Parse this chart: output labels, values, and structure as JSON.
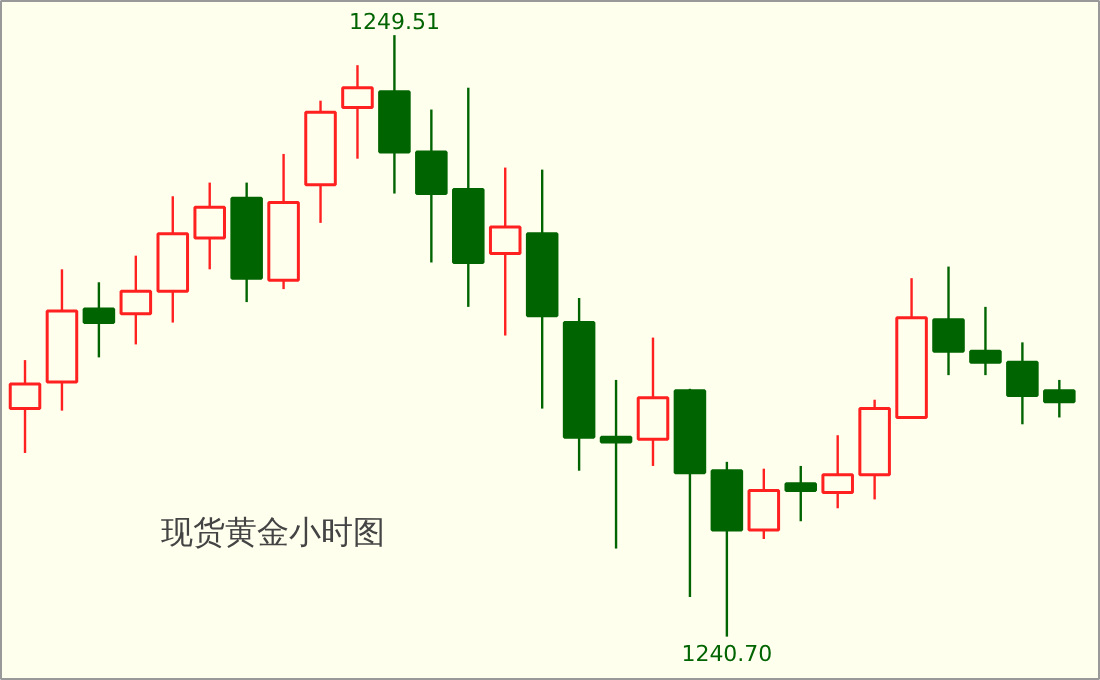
{
  "chart_data": {
    "type": "candlestick",
    "title": "现货黄金小时图",
    "categories": [
      null,
      null,
      null,
      null,
      null,
      null,
      null,
      null,
      null,
      null,
      null,
      null,
      null,
      null,
      null,
      null,
      null,
      null,
      null,
      null,
      null,
      null,
      null,
      null,
      null,
      null,
      null,
      null,
      null
    ],
    "ohlc": [
      [
        1244.04,
        1244.75,
        1243.39,
        1244.4
      ],
      [
        1244.43,
        1246.08,
        1244.01,
        1245.47
      ],
      [
        1245.5,
        1245.89,
        1244.79,
        1245.3
      ],
      [
        1245.43,
        1246.28,
        1244.98,
        1245.76
      ],
      [
        1245.76,
        1247.15,
        1245.3,
        1246.6
      ],
      [
        1246.54,
        1247.35,
        1246.08,
        1246.99
      ],
      [
        1247.12,
        1247.35,
        1245.6,
        1245.95
      ],
      [
        1245.92,
        1247.77,
        1245.79,
        1247.06
      ],
      [
        1247.32,
        1248.55,
        1246.76,
        1248.38
      ],
      [
        1248.45,
        1249.07,
        1247.7,
        1248.74
      ],
      [
        1248.68,
        1249.51,
        1247.19,
        1247.8
      ],
      [
        1247.8,
        1248.42,
        1246.18,
        1247.19
      ],
      [
        1247.25,
        1248.74,
        1245.53,
        1246.18
      ],
      [
        1246.31,
        1247.57,
        1245.11,
        1246.7
      ],
      [
        1246.6,
        1247.54,
        1244.04,
        1245.4
      ],
      [
        1245.3,
        1245.66,
        1243.13,
        1243.62
      ],
      [
        1243.62,
        1244.46,
        1241.99,
        1243.55
      ],
      [
        1243.59,
        1245.08,
        1243.2,
        1244.2
      ],
      [
        1244.3,
        1244.33,
        1241.28,
        1243.1
      ],
      [
        1243.13,
        1243.26,
        1240.7,
        1242.26
      ],
      [
        1242.26,
        1243.16,
        1242.13,
        1242.84
      ],
      [
        1242.94,
        1243.2,
        1242.39,
        1242.84
      ],
      [
        1242.81,
        1243.65,
        1242.58,
        1243.07
      ],
      [
        1243.07,
        1244.17,
        1242.71,
        1244.04
      ],
      [
        1243.91,
        1245.95,
        1243.91,
        1245.37
      ],
      [
        1245.34,
        1246.12,
        1244.53,
        1244.88
      ],
      [
        1244.88,
        1245.53,
        1244.53,
        1244.72
      ],
      [
        1244.72,
        1245.01,
        1243.81,
        1244.23
      ],
      [
        1244.3,
        1244.46,
        1243.91,
        1244.14
      ]
    ],
    "colors": [
      "#ff2020",
      "#ff2020",
      "#006400",
      "#ff2020",
      "#ff2020",
      "#ff2020",
      "#006400",
      "#ff2020",
      "#ff2020",
      "#ff2020",
      "#006400",
      "#006400",
      "#006400",
      "#ff2020",
      "#006400",
      "#006400",
      "#006400",
      "#ff2020",
      "#006400",
      "#006400",
      "#ff2020",
      "#006400",
      "#ff2020",
      "#ff2020",
      "#ff2020",
      "#006400",
      "#006400",
      "#006400",
      "#006400"
    ],
    "ylim": [
      1240.05,
      1250.01
    ],
    "annotations": [
      {
        "text": "1249.51",
        "y": 1249.51
      },
      {
        "text": "1240.70",
        "y": 1240.7
      }
    ]
  }
}
